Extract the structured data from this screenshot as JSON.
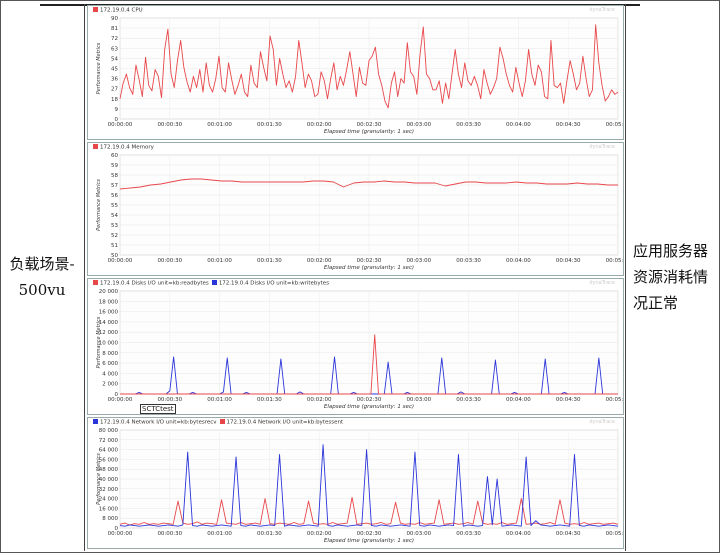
{
  "left_label": "负载场景-500vu",
  "right_label": "应用服务器资源消耗情况正常",
  "colors": {
    "red": "#e8474a",
    "blue": "#2b36d9"
  },
  "annotation": "SCTCtest",
  "charts": [
    {
      "id": "cpu",
      "legend": [
        {
          "color": "red",
          "label": "172.19.0.4 CPU"
        }
      ],
      "watermark": "dynaTrace",
      "ylabel": "Performance Metrics",
      "xlabel": "Elapsed time (granularity: 1 sec)",
      "yticks": [
        "0",
        "9",
        "18",
        "27",
        "36",
        "45",
        "54",
        "63",
        "72",
        "81",
        "90"
      ],
      "ymax": 90,
      "xticks": [
        "00:00:00",
        "00:00:30",
        "00:01:00",
        "00:01:30",
        "00:02:00",
        "00:02:30",
        "00:03:00",
        "00:03:30",
        "00:04:00",
        "00:04:30",
        "00:05:01"
      ],
      "chart_data": {
        "type": "line",
        "series": [
          {
            "name": "172.19.0.4 CPU",
            "color": "red",
            "values": [
              18,
              32,
              40,
              28,
              22,
              48,
              35,
              20,
              55,
              30,
              25,
              44,
              38,
              19,
              62,
              80,
              40,
              28,
              52,
              70,
              46,
              33,
              24,
              38,
              28,
              44,
              24,
              50,
              30,
              24,
              36,
              56,
              28,
              24,
              50,
              35,
              22,
              30,
              40,
              24,
              20,
              48,
              32,
              28,
              60,
              46,
              34,
              74,
              62,
              30,
              54,
              40,
              28,
              34,
              24,
              38,
              70,
              50,
              28,
              40,
              34,
              20,
              22,
              42,
              34,
              18,
              36,
              50,
              26,
              38,
              30,
              44,
              60,
              40,
              20,
              46,
              32,
              30,
              52,
              56,
              64,
              40,
              30,
              16,
              10,
              32,
              42,
              20,
              36,
              32,
              68,
              42,
              38,
              22,
              58,
              82,
              40,
              36,
              26,
              26,
              34,
              14,
              32,
              18,
              40,
              62,
              40,
              28,
              50,
              34,
              30,
              38,
              30,
              18,
              44,
              32,
              22,
              28,
              36,
              64,
              54,
              40,
              30,
              24,
              46,
              32,
              20,
              34,
              62,
              40,
              30,
              48,
              42,
              20,
              18,
              70,
              30,
              28,
              32,
              14,
              34,
              52,
              40,
              26,
              32,
              56,
              36,
              20,
              26,
              84,
              50,
              30,
              16,
              20,
              26,
              22,
              24
            ]
          }
        ]
      }
    },
    {
      "id": "memory",
      "legend": [
        {
          "color": "red",
          "label": "172.19.0.4 Memory"
        }
      ],
      "watermark": "dynaTrace",
      "ylabel": "Performance Metrics",
      "xlabel": "Elapsed time (granularity: 1 sec)",
      "yticks": [
        "50",
        "51",
        "52",
        "53",
        "54",
        "55",
        "56",
        "57",
        "58",
        "59",
        "60"
      ],
      "ymin": 50,
      "ymax": 60,
      "xticks": [
        "00:00:00",
        "00:00:30",
        "00:01:00",
        "00:01:30",
        "00:02:00",
        "00:02:30",
        "00:03:00",
        "00:03:30",
        "00:04:00",
        "00:04:30",
        "00:05:01"
      ],
      "chart_data": {
        "type": "line",
        "series": [
          {
            "name": "172.19.0.4 Memory",
            "color": "red",
            "values": [
              56.6,
              56.7,
              56.8,
              57.0,
              57.1,
              57.3,
              57.5,
              57.6,
              57.6,
              57.5,
              57.4,
              57.4,
              57.3,
              57.3,
              57.3,
              57.3,
              57.3,
              57.3,
              57.3,
              57.4,
              57.4,
              57.3,
              56.8,
              57.2,
              57.3,
              57.3,
              57.4,
              57.3,
              57.3,
              57.2,
              57.2,
              57.2,
              56.9,
              57.1,
              57.3,
              57.3,
              57.2,
              57.2,
              57.2,
              57.3,
              57.2,
              57.2,
              57.1,
              57.1,
              57.1,
              57.2,
              57.1,
              57.1,
              57.0,
              57.0
            ]
          }
        ]
      }
    },
    {
      "id": "disk",
      "legend": [
        {
          "color": "red",
          "label": "172.19.0.4 Disks I/O unit=kb:readbytes"
        },
        {
          "color": "blue",
          "label": "172.19.0.4 Disks I/O unit=kb:writebytes"
        }
      ],
      "watermark": "dynaTrace",
      "ylabel": "Performance Metrics",
      "xlabel": "Elapsed time (granularity: 1 sec)",
      "yticks": [
        "0",
        "2 000",
        "4 000",
        "6 000",
        "8 000",
        "10 000",
        "12 000",
        "14 000",
        "16 000",
        "18 000",
        "20 000"
      ],
      "ymax": 20000,
      "xticks": [
        "00:00:00",
        "00:00:30",
        "00:01:00",
        "00:01:30",
        "00:02:00",
        "00:02:30",
        "00:03:00",
        "00:03:30",
        "00:04:00",
        "00:04:30",
        "00:05:01"
      ],
      "chart_data": {
        "type": "line",
        "series": [
          {
            "name": "172.19.0.4 Disks I/O unit=kb:writebytes",
            "color": "blue",
            "values": [
              0,
              0,
              0,
              0,
              0,
              300,
              0,
              0,
              0,
              0,
              0,
              0,
              0,
              600,
              7200,
              0,
              0,
              0,
              0,
              300,
              0,
              0,
              0,
              0,
              0,
              0,
              0,
              400,
              7000,
              0,
              0,
              0,
              0,
              300,
              0,
              0,
              0,
              0,
              0,
              0,
              0,
              0,
              6800,
              0,
              0,
              0,
              0,
              400,
              0,
              0,
              0,
              0,
              0,
              0,
              0,
              0,
              7200,
              0,
              0,
              0,
              0,
              300,
              0,
              0,
              0,
              0,
              0,
              0,
              0,
              0,
              6200,
              0,
              0,
              0,
              0,
              300,
              0,
              0,
              0,
              0,
              0,
              0,
              0,
              0,
              7000,
              0,
              0,
              0,
              0,
              400,
              0,
              0,
              0,
              0,
              0,
              0,
              0,
              0,
              6600,
              0,
              0,
              0,
              0,
              300,
              0,
              0,
              0,
              0,
              0,
              0,
              0,
              6800,
              0,
              0,
              0,
              0,
              300,
              0,
              0,
              0,
              0,
              0,
              0,
              0,
              0,
              7000,
              0,
              0,
              0,
              0,
              0
            ]
          },
          {
            "name": "172.19.0.4 Disks I/O unit=kb:readbytes",
            "color": "red",
            "values": [
              0,
              0,
              0,
              0,
              0,
              0,
              0,
              0,
              0,
              0,
              0,
              0,
              0,
              0,
              0,
              0,
              0,
              0,
              0,
              0,
              0,
              0,
              0,
              0,
              0,
              0,
              0,
              0,
              0,
              0,
              0,
              0,
              0,
              0,
              0,
              0,
              0,
              0,
              0,
              0,
              0,
              0,
              0,
              0,
              0,
              0,
              0,
              0,
              0,
              0,
              0,
              0,
              0,
              0,
              0,
              0,
              0,
              0,
              0,
              0,
              0,
              0,
              0,
              0,
              0,
              0,
              0,
              11500,
              0,
              0,
              0,
              0,
              0,
              0,
              0,
              0,
              0,
              0,
              0,
              0,
              0,
              0,
              0,
              0,
              0,
              0,
              0,
              0,
              0,
              0,
              0,
              0,
              0,
              0,
              0,
              0,
              0,
              0,
              0,
              0,
              0,
              0,
              0,
              0,
              0,
              0,
              0,
              0,
              0,
              0,
              0,
              0,
              0,
              0,
              0,
              0,
              0,
              0,
              0,
              0,
              0,
              0,
              0,
              0,
              0,
              0,
              0,
              0,
              0,
              0,
              0,
              0
            ]
          }
        ]
      }
    },
    {
      "id": "network",
      "legend": [
        {
          "color": "blue",
          "label": "172.19.0.4 Network I/O unit=kb:bytesrecv"
        },
        {
          "color": "red",
          "label": "172.19.0.4 Network I/O unit=kb:bytessent"
        }
      ],
      "watermark": "dynaTrace",
      "ylabel": "Performance Metrics",
      "xlabel": "Elapsed time (granularity: 1 sec)",
      "yticks": [
        "0",
        "8 000",
        "16 000",
        "24 000",
        "32 000",
        "40 000",
        "48 000",
        "56 000",
        "64 000",
        "72 000",
        "80 000"
      ],
      "ymax": 80000,
      "xticks": [
        "00:00:00",
        "00:00:30",
        "00:01:00",
        "00:01:30",
        "00:02:00",
        "00:02:30",
        "00:03:00",
        "00:03:30",
        "00:04:00",
        "00:04:30",
        "00:05:01"
      ],
      "chart_data": {
        "type": "line",
        "series": [
          {
            "name": "172.19.0.4 Network I/O unit=kb:bytessent",
            "color": "red",
            "values": [
              3000,
              4000,
              2500,
              3500,
              3000,
              4500,
              3000,
              3500,
              3000,
              4000,
              3500,
              3000,
              22000,
              4000,
              3000,
              3500,
              5000,
              3000,
              4000,
              3500,
              3000,
              23000,
              4000,
              3500,
              3000,
              4500,
              3000,
              3500,
              4000,
              3000,
              24000,
              3500,
              3000,
              4000,
              3500,
              3000,
              4500,
              3000,
              3500,
              22000,
              4000,
              3000,
              3500,
              3000,
              4500,
              3000,
              3500,
              4000,
              25000,
              3000,
              3500,
              4000,
              3000,
              3500,
              4500,
              3000,
              3500,
              21000,
              4000,
              3000,
              3500,
              3000,
              4500,
              3000,
              3500,
              4000,
              23000,
              3000,
              3500,
              4000,
              3000,
              3500,
              4500,
              3000,
              22000,
              4000,
              3000,
              3500,
              3000,
              4500,
              3000,
              3500,
              4000,
              24000,
              3000,
              3500,
              4000,
              3000,
              3500,
              4500,
              3000,
              23000,
              4000,
              3000,
              3500,
              3000,
              4500,
              3000,
              3500,
              4000,
              3000,
              3500,
              4000,
              3000
            ]
          },
          {
            "name": "172.19.0.4 Network I/O unit=kb:bytesrecv",
            "color": "blue",
            "values": [
              2000,
              1500,
              2500,
              2000,
              1500,
              2000,
              2500,
              2000,
              1500,
              2000,
              2500,
              2000,
              1500,
              2500,
              62000,
              2000,
              1500,
              2500,
              2000,
              1500,
              2000,
              2500,
              2000,
              1500,
              58000,
              2000,
              1500,
              2500,
              2000,
              1500,
              2000,
              2500,
              2000,
              60000,
              1500,
              2500,
              2000,
              1500,
              2000,
              2500,
              2000,
              1500,
              68000,
              2000,
              1500,
              2500,
              2000,
              1500,
              2000,
              2500,
              2000,
              64000,
              2000,
              1500,
              2500,
              2000,
              1500,
              2000,
              2500,
              2000,
              1500,
              62000,
              2000,
              1500,
              2500,
              2000,
              1500,
              2000,
              2500,
              2000,
              60000,
              1500,
              2500,
              2000,
              1500,
              2000,
              42000,
              2500,
              40000,
              1500,
              2000,
              2500,
              2000,
              1500,
              58000,
              2000,
              6000,
              2500,
              2000,
              1500,
              2000,
              2500,
              2000,
              1500,
              60000,
              2000,
              1500,
              2500,
              2000,
              1500,
              2000,
              2500,
              2000,
              1500
            ]
          }
        ]
      }
    }
  ]
}
